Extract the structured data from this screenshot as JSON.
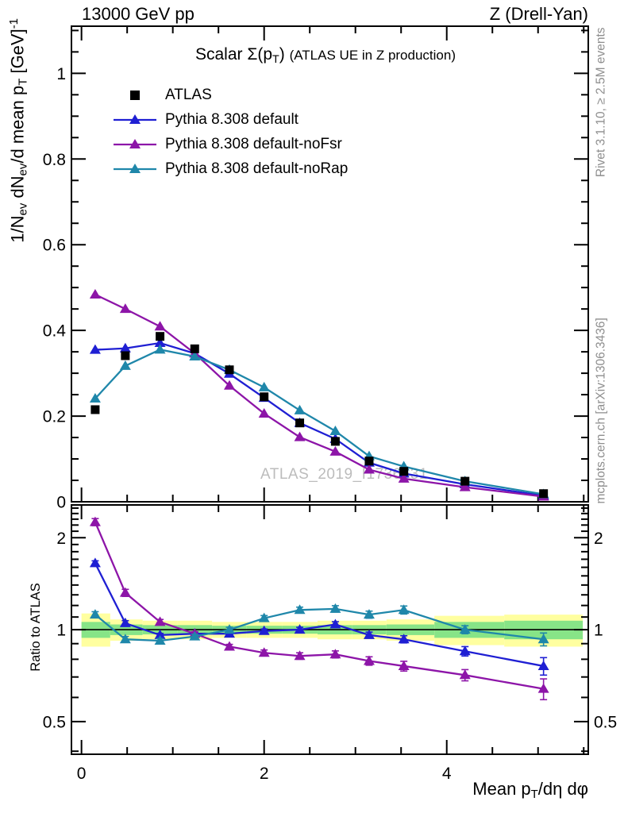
{
  "header": {
    "left": "13000 GeV pp",
    "right": "Z (Drell-Yan)"
  },
  "side_labels": {
    "top_right": "Rivet 3.1.10, ≥ 2.5M events",
    "bottom_right": "mcplots.cern.ch [arXiv:1306.3436]"
  },
  "watermark": "ATLAS_2019_I1736531",
  "ratio_label": "Ratio to ATLAS",
  "chart_data": {
    "type": "line",
    "title_parts": [
      {
        "t": "Scalar Σ(p"
      },
      {
        "t": "T",
        "s": "sub"
      },
      {
        "t": ") "
      },
      {
        "t": "(ATLAS UE in Z production)",
        "s": "small"
      }
    ],
    "xlabel_parts": [
      {
        "t": "Mean p"
      },
      {
        "t": "T",
        "s": "sub"
      },
      {
        "t": "/dη dφ"
      }
    ],
    "ylabel_parts": [
      {
        "t": "1/N"
      },
      {
        "t": "ev",
        "s": "sub"
      },
      {
        "t": " dN"
      },
      {
        "t": "ev",
        "s": "sub"
      },
      {
        "t": "/d mean p"
      },
      {
        "t": "T",
        "s": "sub"
      },
      {
        "t": " [GeV]"
      },
      {
        "t": "-1",
        "s": "sup"
      }
    ],
    "x": [
      0.15,
      0.48,
      0.86,
      1.24,
      1.62,
      2.0,
      2.39,
      2.78,
      3.15,
      3.53,
      4.2,
      5.06
    ],
    "atlas": {
      "name": "ATLAS",
      "color": "#000000",
      "marker": "square",
      "values": [
        0.215,
        0.341,
        0.386,
        0.357,
        0.308,
        0.245,
        0.184,
        0.141,
        0.095,
        0.071,
        0.048,
        0.019
      ],
      "err": [
        0.005,
        0.004,
        0.004,
        0.003,
        0.003,
        0.003,
        0.002,
        0.002,
        0.002,
        0.002,
        0.002,
        0.001
      ]
    },
    "mc_series": [
      {
        "name": "Pythia 8.308 default",
        "color": "#1f1fd3",
        "marker": "triangle",
        "ratio": [
          1.65,
          1.05,
          0.96,
          0.97,
          0.97,
          0.99,
          1.0,
          1.04,
          0.96,
          0.93,
          0.85,
          0.76
        ],
        "ratio_err": [
          0.03,
          0.02,
          0.012,
          0.012,
          0.012,
          0.015,
          0.018,
          0.022,
          0.022,
          0.025,
          0.03,
          0.05
        ]
      },
      {
        "name": "Pythia 8.308 default-noFsr",
        "color": "#8d15a8",
        "marker": "triangle",
        "ratio": [
          2.25,
          1.32,
          1.06,
          0.97,
          0.88,
          0.84,
          0.82,
          0.83,
          0.79,
          0.76,
          0.71,
          0.64
        ],
        "ratio_err": [
          0.06,
          0.035,
          0.02,
          0.015,
          0.015,
          0.018,
          0.02,
          0.022,
          0.025,
          0.028,
          0.03,
          0.05
        ]
      },
      {
        "name": "Pythia 8.308 default-noRap",
        "color": "#1f87aa",
        "marker": "triangle",
        "ratio": [
          1.12,
          0.93,
          0.92,
          0.95,
          1.0,
          1.09,
          1.16,
          1.17,
          1.12,
          1.16,
          1.0,
          0.93
        ],
        "ratio_err": [
          0.025,
          0.02,
          0.015,
          0.015,
          0.018,
          0.022,
          0.025,
          0.028,
          0.03,
          0.035,
          0.03,
          0.045
        ]
      }
    ],
    "axes": {
      "x": {
        "range": [
          -0.11,
          5.55
        ],
        "major": [
          {
            "v": 0,
            "label": "0"
          },
          {
            "v": 2,
            "label": "2"
          },
          {
            "v": 4,
            "label": "4"
          }
        ],
        "minor_step": 0.5
      },
      "y_main": {
        "range": [
          0,
          1.11
        ],
        "major": [
          {
            "v": 0,
            "label": "0"
          },
          {
            "v": 0.2,
            "label": "0.2"
          },
          {
            "v": 0.4,
            "label": "0.4"
          },
          {
            "v": 0.6,
            "label": "0.6"
          },
          {
            "v": 0.8,
            "label": "0.8"
          },
          {
            "v": 1,
            "label": "1"
          }
        ],
        "minor_step": 0.05
      },
      "y_ratio": {
        "range": [
          0.391,
          2.56
        ],
        "scale": "log",
        "major": [
          {
            "v": 0.5,
            "label": "0.5"
          },
          {
            "v": 1,
            "label": "1"
          },
          {
            "v": 2,
            "label": "2"
          }
        ],
        "minor": [
          0.4,
          0.6,
          0.7,
          0.8,
          0.9,
          1.1,
          1.2,
          1.3,
          1.4,
          1.5,
          1.6,
          1.7,
          1.8,
          1.9,
          2.1,
          2.2,
          2.3,
          2.4,
          2.5
        ]
      }
    },
    "band": {
      "colors": {
        "yellow": "#ffffa0",
        "green": "#87e487"
      },
      "edges": [
        0,
        0.315,
        0.67,
        1.05,
        1.43,
        1.81,
        2.195,
        2.585,
        2.965,
        3.34,
        3.865,
        4.63,
        5.49
      ],
      "yellow": [
        [
          0.88,
          1.13
        ],
        [
          0.92,
          1.08
        ],
        [
          0.93,
          1.07
        ],
        [
          0.93,
          1.07
        ],
        [
          0.94,
          1.06
        ],
        [
          0.94,
          1.06
        ],
        [
          0.94,
          1.06
        ],
        [
          0.93,
          1.07
        ],
        [
          0.93,
          1.07
        ],
        [
          0.92,
          1.08
        ],
        [
          0.89,
          1.11
        ],
        [
          0.88,
          1.12
        ]
      ],
      "green": [
        [
          0.94,
          1.06
        ],
        [
          0.96,
          1.04
        ],
        [
          0.965,
          1.035
        ],
        [
          0.965,
          1.035
        ],
        [
          0.97,
          1.03
        ],
        [
          0.97,
          1.03
        ],
        [
          0.97,
          1.03
        ],
        [
          0.965,
          1.035
        ],
        [
          0.965,
          1.035
        ],
        [
          0.96,
          1.04
        ],
        [
          0.94,
          1.06
        ],
        [
          0.93,
          1.07
        ]
      ]
    },
    "note": "ratio = MC/ATLAS; MC main-panel values = ratio × ATLAS"
  }
}
